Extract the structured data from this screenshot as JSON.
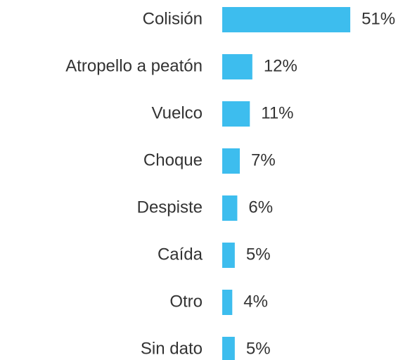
{
  "chart_data": {
    "type": "hbar",
    "categories": [
      "Colisión",
      "Atropello a peatón",
      "Vuelco",
      "Choque",
      "Despiste",
      "Caída",
      "Otro",
      "Sin dato"
    ],
    "values": [
      51,
      12,
      11,
      7,
      6,
      5,
      4,
      5
    ],
    "value_labels": [
      "51%",
      "12%",
      "11%",
      "7%",
      "6%",
      "5%",
      "4%",
      "5%"
    ],
    "color": "#3dbdee"
  }
}
